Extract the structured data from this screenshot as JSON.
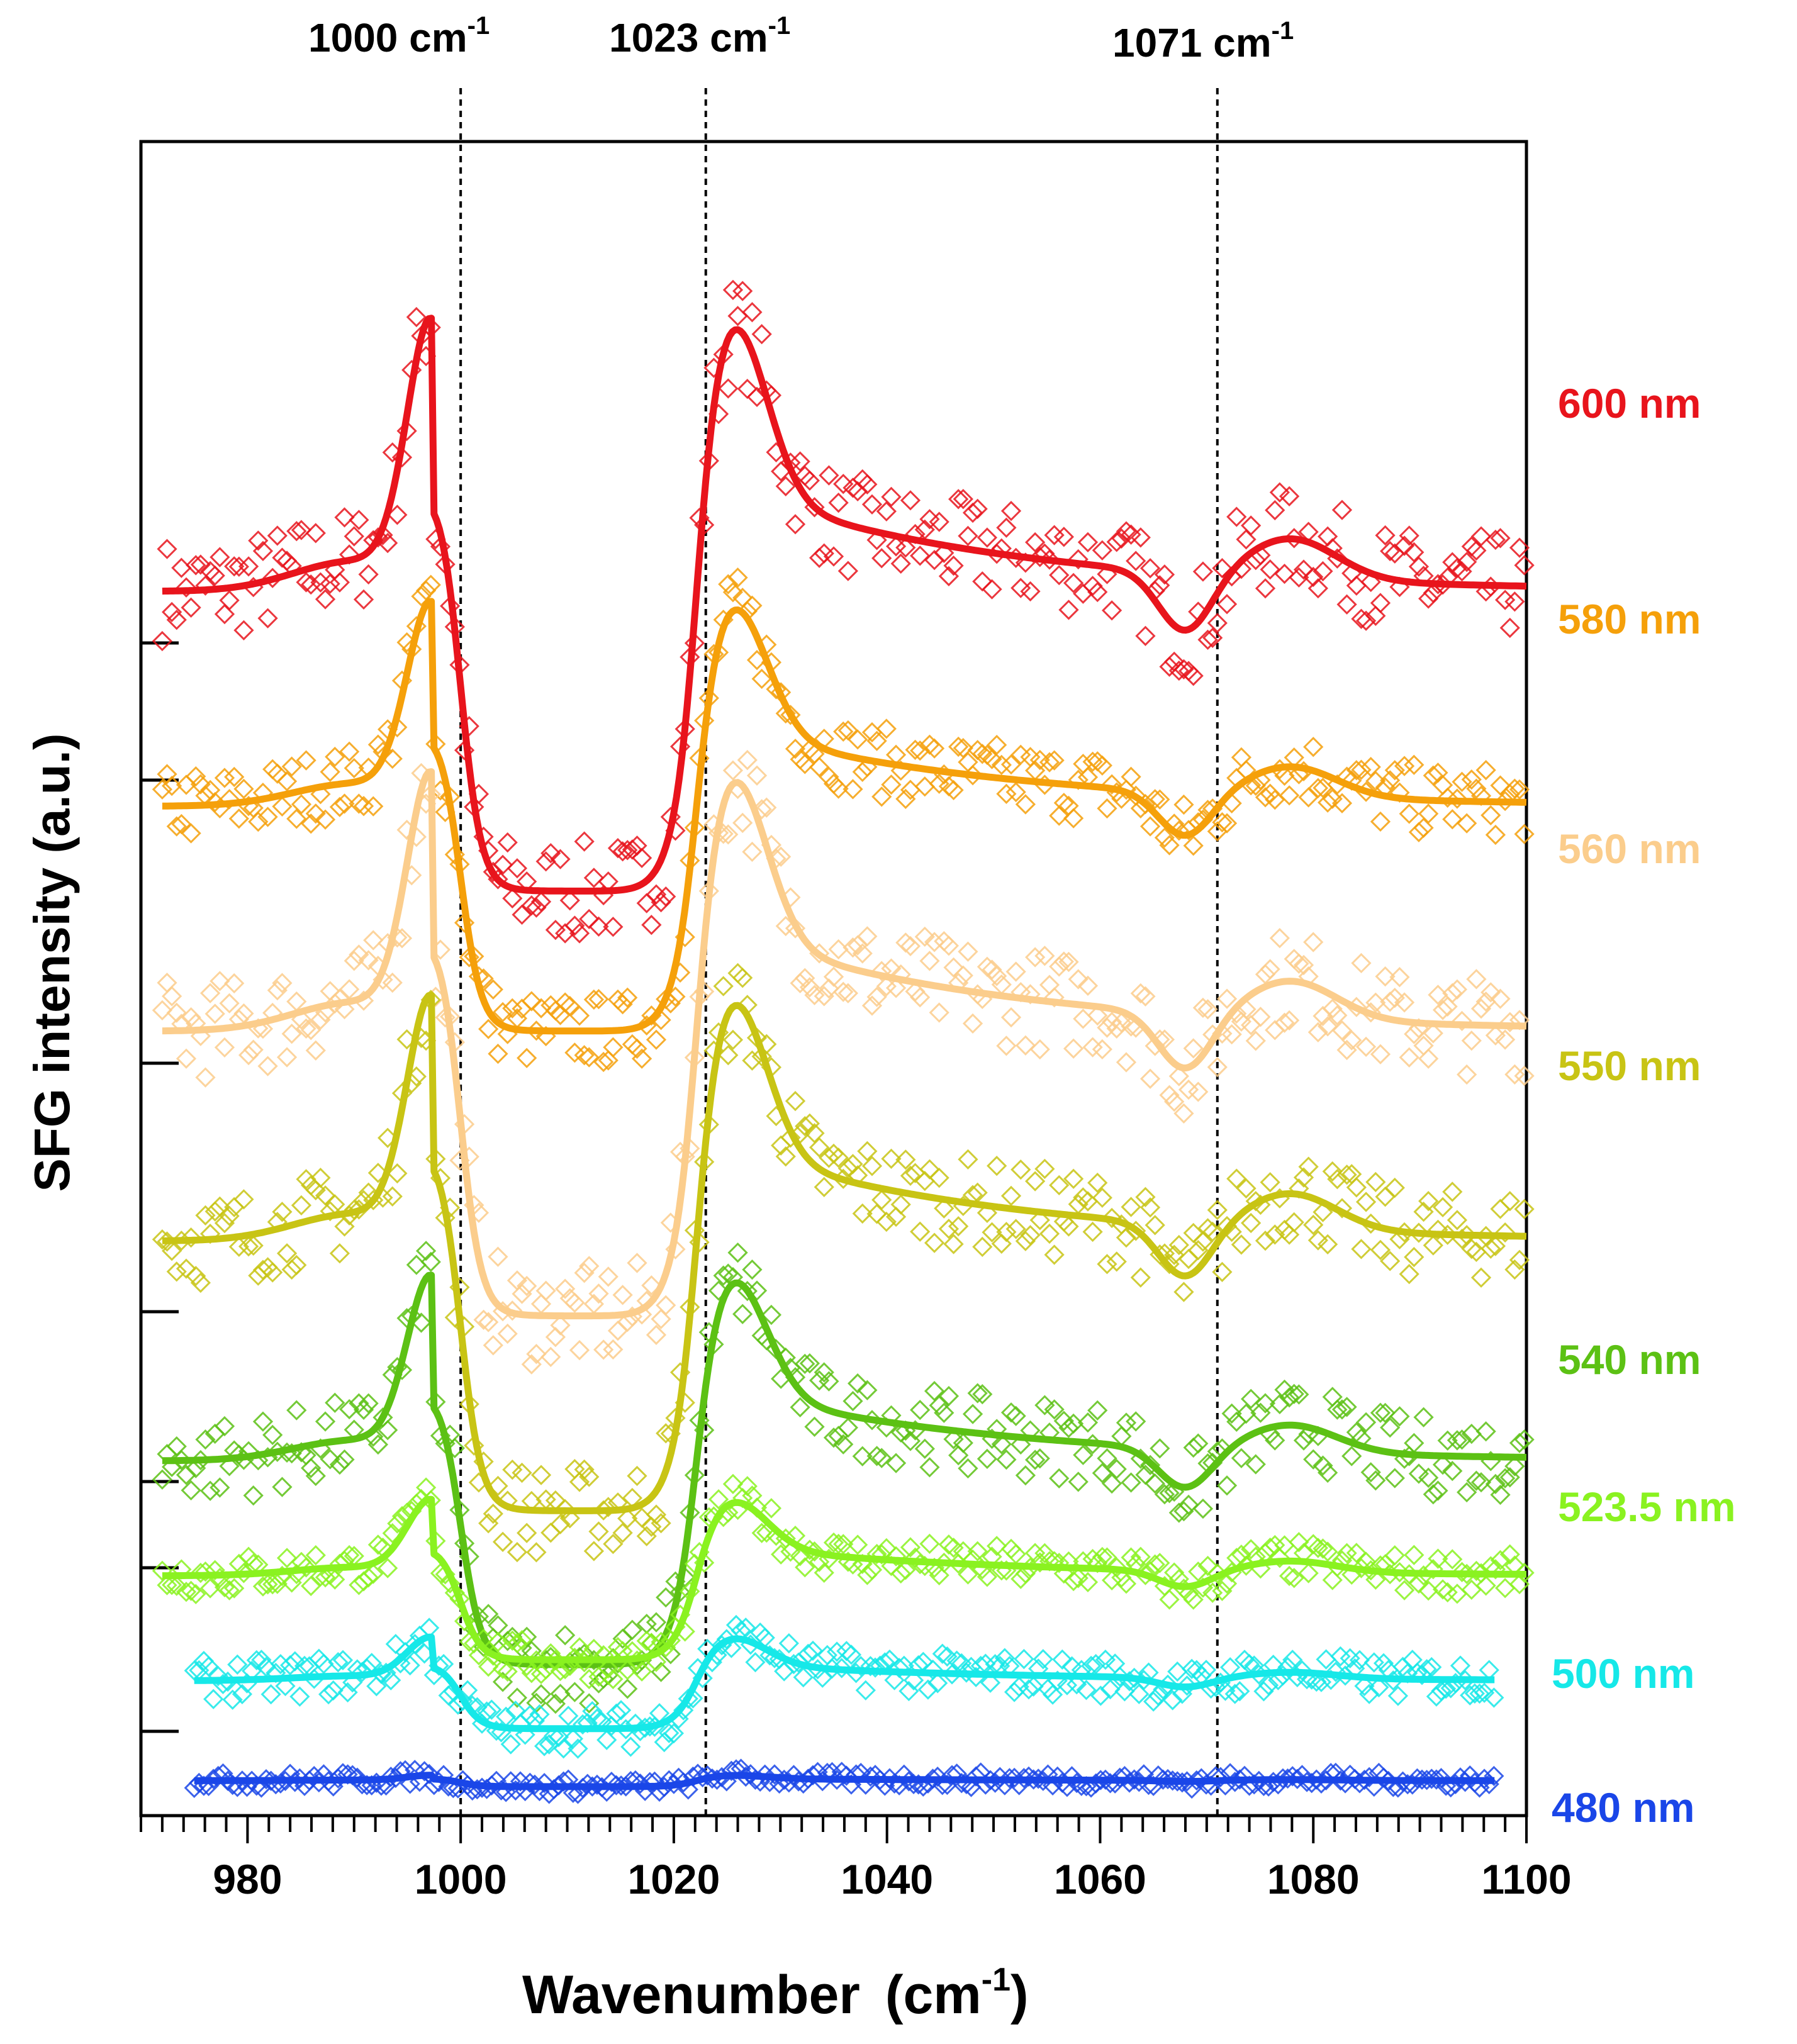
{
  "chart_data": {
    "type": "scatter",
    "title": "",
    "xlabel": "Wavenumber",
    "xlabel_unit": "(cm",
    "xlabel_unit_sup": "-1",
    "xlabel_unit_close": ")",
    "ylabel": "SFG intensity (a.u.)",
    "xlim": [
      970,
      1100
    ],
    "ylim": [
      -0.15,
      3.2
    ],
    "xticks": [
      980,
      1000,
      1020,
      1040,
      1060,
      1080,
      1100
    ],
    "xtick_labels": [
      "980",
      "1000",
      "1020",
      "1040",
      "1060",
      "1080",
      "1100"
    ],
    "annotations": [
      {
        "x": 1000,
        "label": "1000 cm",
        "sup": "-1"
      },
      {
        "x": 1023,
        "label": "1023 cm",
        "sup": "-1"
      },
      {
        "x": 1071,
        "label": "1071 cm",
        "sup": "-1"
      }
    ],
    "series": [
      {
        "name": "600 nm",
        "color": "#e8141c",
        "offset": 2.3,
        "amp": 1.0,
        "noise": 0.1,
        "x_start": 972,
        "x_end": 1100
      },
      {
        "name": "580 nm",
        "color": "#f5a00a",
        "offset": 1.87,
        "amp": 0.75,
        "noise": 0.07,
        "x_start": 972,
        "x_end": 1100
      },
      {
        "name": "560 nm",
        "color": "#fbcd8c",
        "offset": 1.42,
        "amp": 0.95,
        "noise": 0.1,
        "x_start": 972,
        "x_end": 1100
      },
      {
        "name": "550 nm",
        "color": "#c8c414",
        "offset": 1.0,
        "amp": 0.9,
        "noise": 0.09,
        "x_start": 972,
        "x_end": 1100
      },
      {
        "name": "540 nm",
        "color": "#5cc114",
        "offset": 0.56,
        "amp": 0.68,
        "noise": 0.08,
        "x_start": 972,
        "x_end": 1100
      },
      {
        "name": "523.5 nm",
        "color": "#8af220",
        "offset": 0.33,
        "amp": 0.28,
        "noise": 0.04,
        "x_start": 972,
        "x_end": 1100
      },
      {
        "name": "500 nm",
        "color": "#16e8e8",
        "offset": 0.12,
        "amp": 0.16,
        "noise": 0.04,
        "x_start": 975,
        "x_end": 1097
      },
      {
        "name": "480 nm",
        "color": "#1a46e8",
        "offset": -0.08,
        "amp": 0.02,
        "noise": 0.015,
        "x_start": 975,
        "x_end": 1097
      }
    ]
  }
}
